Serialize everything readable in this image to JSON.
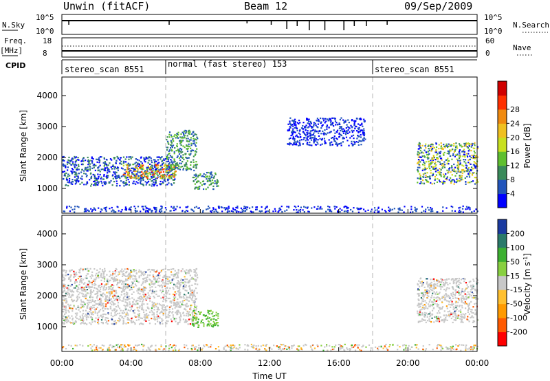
{
  "header": {
    "station": "Unwin (fitACF)",
    "beam": "Beam 12",
    "date": "09/Sep/2009"
  },
  "strip_panels": {
    "nsky": {
      "label": "N.Sky",
      "ticks": [
        "10^5",
        "10^0"
      ],
      "right_ticks": [
        "10^5",
        "10^0"
      ],
      "right_label": "N.Search"
    },
    "freq": {
      "label_line1": "Freq.",
      "label_line2": "[MHz]",
      "ticks": [
        "18",
        "8"
      ],
      "right_ticks": [
        "60",
        "0"
      ],
      "right_label": "Nave"
    },
    "cpid": {
      "label": "CPID",
      "segments": [
        {
          "text": "stereo_scan 8551",
          "start_hour": 0
        },
        {
          "text": "normal (fast stereo) 153",
          "start_hour": 6
        },
        {
          "text": "stereo_scan 8551",
          "start_hour": 18
        }
      ]
    }
  },
  "chart_data": [
    {
      "type": "heatmap",
      "quantity": "power",
      "ylabel": "Slant Range [km]",
      "yticks": [
        1000,
        2000,
        3000,
        4000
      ],
      "ylim": [
        200,
        4600
      ],
      "xlim": [
        0,
        24
      ],
      "colorbar": {
        "label": "Power [dB]",
        "ticks": [
          "4",
          "8",
          "12",
          "16",
          "20",
          "24",
          "28"
        ],
        "colors": [
          "#0000ff",
          "#2255bb",
          "#3a8a5a",
          "#5fbf2f",
          "#c8e020",
          "#f0c020",
          "#f08a10",
          "#ff3000",
          "#d00000"
        ]
      },
      "echo_regions": [
        {
          "t0": 0.0,
          "t1": 6.5,
          "r0": 1100,
          "r1": 2050,
          "level": "low-mid"
        },
        {
          "t0": 3.5,
          "t1": 6.6,
          "r0": 1350,
          "r1": 1800,
          "level": "high"
        },
        {
          "t0": 6.0,
          "t1": 7.8,
          "r0": 1600,
          "r1": 2900,
          "level": "mid"
        },
        {
          "t0": 7.5,
          "t1": 9.0,
          "r0": 1000,
          "r1": 1550,
          "level": "mid"
        },
        {
          "t0": 20.5,
          "t1": 24.0,
          "r0": 1150,
          "r1": 2500,
          "level": "low-high"
        },
        {
          "t0": 13.0,
          "t1": 17.5,
          "r0": 2400,
          "r1": 3300,
          "level": "low"
        },
        {
          "t0": 0.0,
          "t1": 24.0,
          "r0": 250,
          "r1": 450,
          "level": "low"
        }
      ]
    },
    {
      "type": "heatmap",
      "quantity": "velocity",
      "xlabel": "Time UT",
      "ylabel": "Slant Range [km]",
      "yticks": [
        1000,
        2000,
        3000,
        4000
      ],
      "ylim": [
        200,
        4600
      ],
      "xlim": [
        0,
        24
      ],
      "xticks": [
        "00:00",
        "04:00",
        "08:00",
        "12:00",
        "16:00",
        "20:00",
        "00:00"
      ],
      "colorbar": {
        "label": "Velocity [m s-1]",
        "ticks": [
          "-200",
          "-100",
          "-50",
          "-15",
          "15",
          "50",
          "100",
          "200"
        ],
        "colors": [
          "#ff0000",
          "#ff5a00",
          "#ff9a00",
          "#ffc030",
          "#c8c8c8",
          "#88d040",
          "#3cb030",
          "#2a7a6a",
          "#1a3aa0"
        ]
      },
      "echo_regions": [
        {
          "t0": 0.0,
          "t1": 7.8,
          "r0": 1100,
          "r1": 2900,
          "level": "ground-scatter"
        },
        {
          "t0": 7.5,
          "t1": 9.0,
          "r0": 1000,
          "r1": 1550,
          "level": "positive"
        },
        {
          "t0": 20.5,
          "t1": 24.0,
          "r0": 1150,
          "r1": 2600,
          "level": "ground-scatter"
        },
        {
          "t0": 0.0,
          "t1": 24.0,
          "r0": 250,
          "r1": 450,
          "level": "mixed"
        }
      ]
    }
  ]
}
